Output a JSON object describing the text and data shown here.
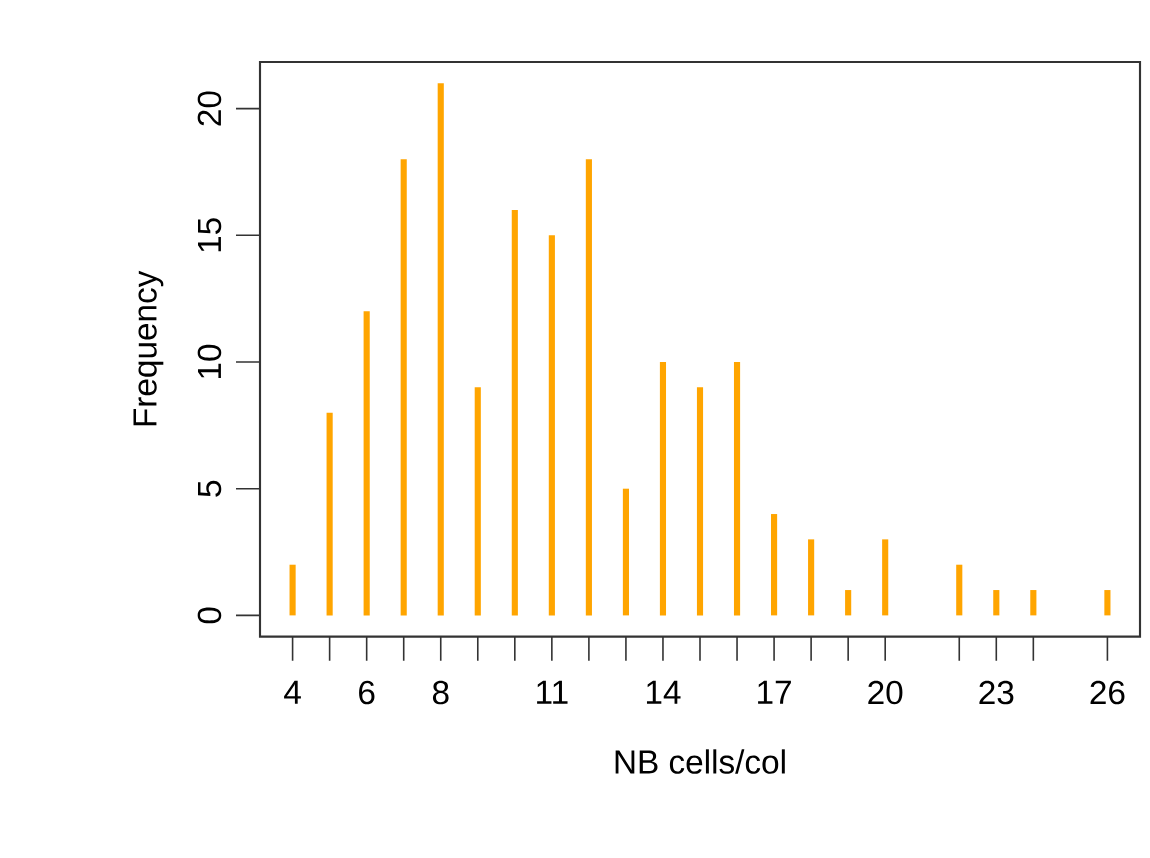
{
  "chart_data": {
    "type": "bar",
    "xlabel": "NB cells/col",
    "ylabel": "Frequency",
    "x": [
      4,
      5,
      6,
      7,
      8,
      9,
      10,
      11,
      12,
      13,
      14,
      15,
      16,
      17,
      18,
      19,
      20,
      22,
      23,
      24,
      26
    ],
    "values": [
      2,
      8,
      12,
      18,
      21,
      9,
      16,
      15,
      18,
      5,
      10,
      9,
      10,
      4,
      3,
      1,
      3,
      2,
      1,
      1,
      1
    ],
    "color": "#ffa500",
    "xlim": [
      3.12,
      26.88
    ],
    "ylim": [
      -0.84,
      21.84
    ],
    "xticks": [
      4,
      {
        "value": 5,
        "label": null
      },
      6,
      {
        "value": 7,
        "label": null
      },
      8,
      {
        "value": 9,
        "label": null
      },
      {
        "value": 10,
        "label": null
      },
      11,
      {
        "value": 12,
        "label": null
      },
      {
        "value": 13,
        "label": null
      },
      14,
      {
        "value": 15,
        "label": null
      },
      {
        "value": 16,
        "label": null
      },
      17,
      {
        "value": 18,
        "label": null
      },
      {
        "value": 19,
        "label": null
      },
      20,
      {
        "value": 22,
        "label": null
      },
      23,
      {
        "value": 24,
        "label": null
      },
      26
    ],
    "yticks": [
      0,
      5,
      10,
      15,
      20
    ]
  }
}
